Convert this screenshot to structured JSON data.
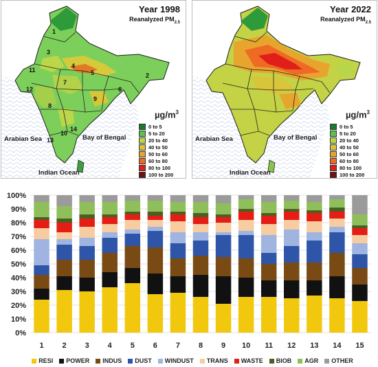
{
  "maps": [
    {
      "title": "Year 1998",
      "subtitle": "Reanalyzed PM",
      "subtitle_sub": "2.5",
      "variant": "low"
    },
    {
      "title": "Year 2022",
      "subtitle": "Reanalyzed PM",
      "subtitle_sub": "2.5",
      "variant": "high"
    }
  ],
  "map_unit": {
    "base": "µg/m",
    "exp": "3"
  },
  "map_labels": {
    "arabian_sea": "Arabian Sea",
    "bay_of_bengal": "Bay of Bengal",
    "indian_ocean": "Indian Ocean"
  },
  "map_legend": [
    {
      "label": "0 to 5",
      "color": "#1a7a2e"
    },
    {
      "label": "5 to 20",
      "color": "#5cc24a"
    },
    {
      "label": "20 to 40",
      "color": "#b9d64a"
    },
    {
      "label": "40 to 50",
      "color": "#d8c53a"
    },
    {
      "label": "50 to 60",
      "color": "#e8a52e"
    },
    {
      "label": "60 to 80",
      "color": "#ef6a24"
    },
    {
      "label": "80 to 100",
      "color": "#e02018"
    },
    {
      "label": "100 to 200",
      "color": "#6b1414"
    }
  ],
  "region_numbers": [
    "1",
    "2",
    "3",
    "4",
    "5",
    "6",
    "7",
    "8",
    "9",
    "10",
    "11",
    "12",
    "13",
    "14"
  ],
  "chart_data": {
    "type": "bar",
    "stacked": true,
    "categories": [
      "1",
      "2",
      "3",
      "4",
      "5",
      "6",
      "7",
      "8",
      "9",
      "10",
      "11",
      "12",
      "13",
      "14",
      "15"
    ],
    "ylim": [
      0,
      100
    ],
    "yticks": [
      "0%",
      "10%",
      "20%",
      "30%",
      "40%",
      "50%",
      "60%",
      "70%",
      "80%",
      "90%",
      "100%"
    ],
    "series": [
      {
        "name": "RESI",
        "color": "#f2c80f",
        "values": [
          24,
          31,
          30,
          33,
          36,
          28,
          29,
          26,
          21,
          26,
          26,
          25,
          27,
          25,
          23
        ]
      },
      {
        "name": "POWER",
        "color": "#111111",
        "values": [
          8,
          10,
          10,
          11,
          11,
          15,
          12,
          16,
          20,
          14,
          12,
          13,
          11,
          16,
          12
        ]
      },
      {
        "name": "INDUS",
        "color": "#7a4a14",
        "values": [
          10,
          12,
          13,
          14,
          16,
          19,
          13,
          14,
          14,
          14,
          12,
          13,
          13,
          17,
          12
        ]
      },
      {
        "name": "DUST",
        "color": "#2e55a8",
        "values": [
          7,
          11,
          10,
          11,
          9,
          12,
          11,
          11,
          16,
          17,
          8,
          12,
          16,
          15,
          10
        ]
      },
      {
        "name": "WINDUST",
        "color": "#9fb4e0",
        "values": [
          19,
          4,
          6,
          4,
          3,
          3,
          8,
          6,
          2,
          3,
          13,
          12,
          6,
          4,
          8
        ]
      },
      {
        "name": "TRANS",
        "color": "#f6cca0",
        "values": [
          8,
          5,
          8,
          6,
          7,
          5,
          8,
          6,
          7,
          8,
          8,
          7,
          8,
          6,
          6
        ]
      },
      {
        "name": "WASTE",
        "color": "#e41e14",
        "values": [
          6,
          7,
          6,
          5,
          4,
          3,
          5,
          5,
          4,
          6,
          6,
          6,
          6,
          5,
          5
        ]
      },
      {
        "name": "BIOB",
        "color": "#4d5e22",
        "values": [
          2,
          3,
          3,
          2,
          2,
          3,
          2,
          3,
          2,
          2,
          2,
          2,
          2,
          3,
          2
        ]
      },
      {
        "name": "AGR",
        "color": "#8fbf5a",
        "values": [
          11,
          9,
          9,
          9,
          8,
          8,
          7,
          8,
          8,
          7,
          8,
          6,
          6,
          6,
          8
        ]
      },
      {
        "name": "OTHER",
        "color": "#9b9b9b",
        "values": [
          5,
          8,
          5,
          5,
          4,
          4,
          5,
          5,
          6,
          3,
          5,
          4,
          5,
          3,
          14
        ]
      }
    ]
  }
}
